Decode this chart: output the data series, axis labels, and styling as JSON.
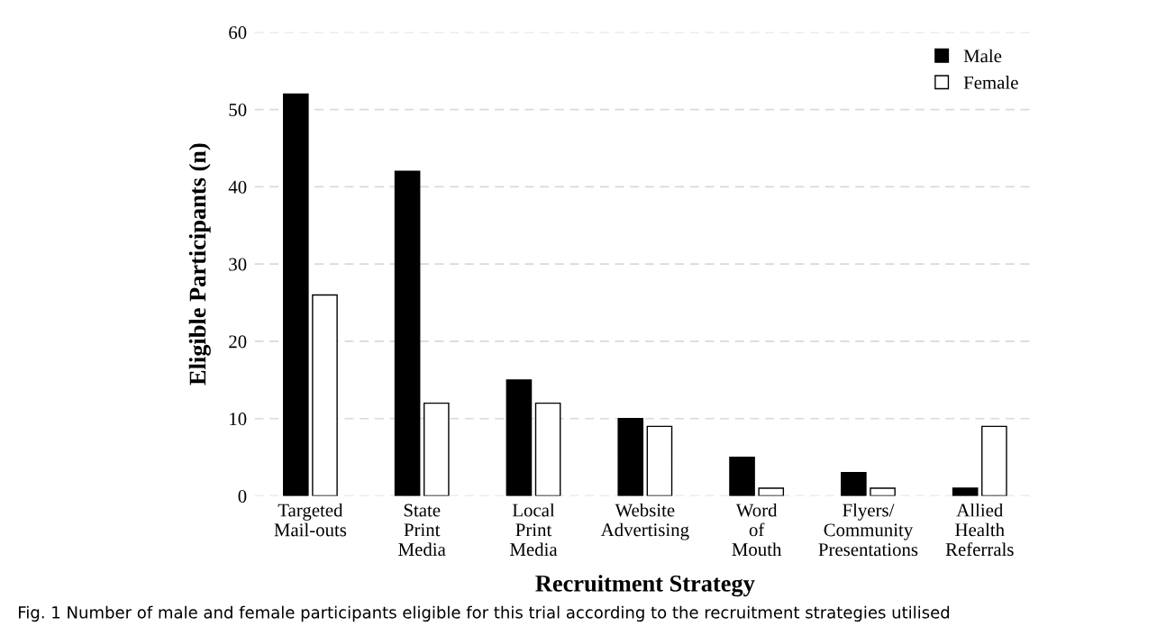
{
  "chart_data": {
    "type": "bar",
    "xlabel": "Recruitment Strategy",
    "ylabel": "Eligible Participants (n)",
    "categories": [
      "Targeted\nMail-outs",
      "State\nPrint\nMedia",
      "Local\nPrint\nMedia",
      "Website\nAdvertising",
      "Word\nof\nMouth",
      "Flyers/\nCommunity\nPresentations",
      "Allied\nHealth\nReferrals"
    ],
    "series": [
      {
        "name": "Male",
        "color": "#000000",
        "values": [
          52,
          42,
          15,
          10,
          5,
          3,
          1
        ]
      },
      {
        "name": "Female",
        "color": "#ffffff",
        "values": [
          26,
          12,
          12,
          9,
          1,
          1,
          9
        ]
      }
    ],
    "ylim": [
      0,
      60
    ],
    "yticks": [
      0,
      10,
      20,
      30,
      40,
      50,
      60
    ],
    "grid": "y",
    "legend": "top right",
    "annotations": [
      "Fig. 1 Number of male and female participants eligible for this trial according to the recruitment strategies utilised"
    ]
  }
}
